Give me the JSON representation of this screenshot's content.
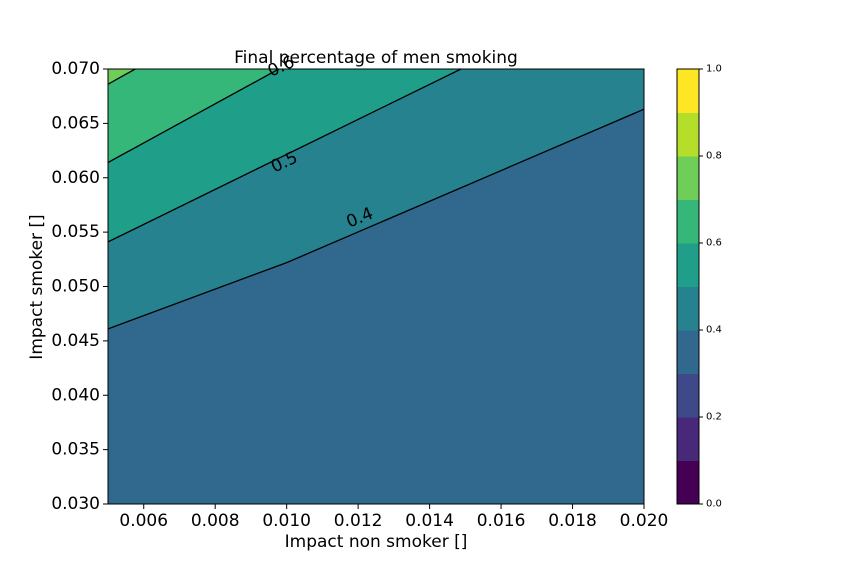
{
  "chart_data": {
    "type": "contourf",
    "title": "Final percentage of men smoking",
    "xlabel": "Impact non smoker []",
    "ylabel": "Impact smoker []",
    "xlim": [
      0.005,
      0.02
    ],
    "ylim": [
      0.03,
      0.07
    ],
    "x_ticks": [
      "0.006",
      "0.008",
      "0.010",
      "0.012",
      "0.014",
      "0.016",
      "0.018",
      "0.020"
    ],
    "y_ticks": [
      "0.030",
      "0.035",
      "0.040",
      "0.045",
      "0.050",
      "0.055",
      "0.060",
      "0.065",
      "0.070"
    ],
    "x_tick_values": [
      0.006,
      0.008,
      0.01,
      0.012,
      0.014,
      0.016,
      0.018,
      0.02
    ],
    "y_tick_values": [
      0.03,
      0.035,
      0.04,
      0.045,
      0.05,
      0.055,
      0.06,
      0.065,
      0.07
    ],
    "contour_lines": [
      {
        "label": "0.4",
        "points": [
          [
            0.005,
            0.0461
          ],
          [
            0.01,
            0.0522
          ],
          [
            0.02,
            0.0663
          ]
        ]
      },
      {
        "label": "0.5",
        "points": [
          [
            0.005,
            0.0541
          ],
          [
            0.01488,
            0.07
          ]
        ]
      },
      {
        "label": "0.6",
        "points": [
          [
            0.005,
            0.0614
          ],
          [
            0.00978,
            0.07
          ]
        ]
      },
      {
        "label": "",
        "points": [
          [
            0.005,
            0.0686
          ],
          [
            0.00576,
            0.07
          ]
        ]
      }
    ],
    "fill_regions": [
      {
        "band": "0.3-0.4",
        "color": "#31688e",
        "polygon": [
          [
            0.005,
            0.03
          ],
          [
            0.02,
            0.03
          ],
          [
            0.02,
            0.0663
          ],
          [
            0.01,
            0.0522
          ],
          [
            0.005,
            0.0461
          ]
        ]
      },
      {
        "band": "0.4-0.5",
        "color": "#26828e",
        "polygon": [
          [
            0.005,
            0.0461
          ],
          [
            0.01,
            0.0522
          ],
          [
            0.02,
            0.0663
          ],
          [
            0.02,
            0.07
          ],
          [
            0.01488,
            0.07
          ],
          [
            0.005,
            0.0541
          ]
        ]
      },
      {
        "band": "0.5-0.6",
        "color": "#1f9e89",
        "polygon": [
          [
            0.005,
            0.0541
          ],
          [
            0.01488,
            0.07
          ],
          [
            0.00978,
            0.07
          ],
          [
            0.005,
            0.0614
          ]
        ]
      },
      {
        "band": "0.6-0.7",
        "color": "#35b779",
        "polygon": [
          [
            0.005,
            0.0614
          ],
          [
            0.00978,
            0.07
          ],
          [
            0.00576,
            0.07
          ],
          [
            0.005,
            0.0686
          ]
        ]
      },
      {
        "band": "0.7-0.8",
        "color": "#6ece58",
        "polygon": [
          [
            0.005,
            0.0686
          ],
          [
            0.00576,
            0.07
          ],
          [
            0.005,
            0.07
          ]
        ]
      }
    ],
    "colorbar": {
      "range": [
        0.0,
        1.0
      ],
      "levels": [
        0.0,
        0.1,
        0.2,
        0.3,
        0.4,
        0.5,
        0.6,
        0.7,
        0.8,
        0.9,
        1.0
      ],
      "colors": [
        "#440154",
        "#482878",
        "#3e4989",
        "#31688e",
        "#26828e",
        "#1f9e89",
        "#35b779",
        "#6ece58",
        "#b5de2b",
        "#fde725"
      ],
      "tick_values": [
        0.0,
        0.2,
        0.4,
        0.6,
        0.8,
        1.0
      ],
      "tick_labels": [
        "0.0",
        "0.2",
        "0.4",
        "0.6",
        "0.8",
        "1.0"
      ]
    },
    "inline_labels": [
      {
        "text": "0.4",
        "x": 0.01205,
        "y": 0.0563,
        "angle": -22
      },
      {
        "text": "0.5",
        "x": 0.00994,
        "y": 0.0614,
        "angle": -25
      },
      {
        "text": "0.6",
        "x": 0.00985,
        "y": 0.0702,
        "angle": -25
      }
    ]
  }
}
